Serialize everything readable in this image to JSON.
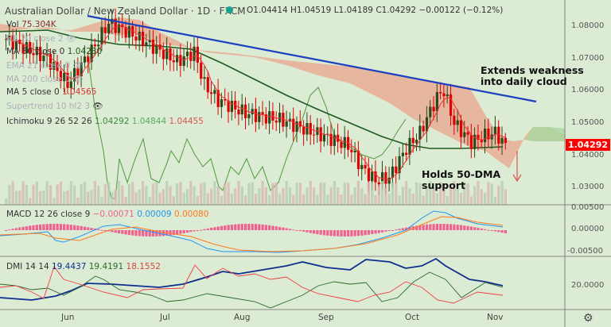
{
  "header": {
    "title": "Australian Dollar / New Zealand Dollar · 1D · FXCM",
    "open": "O1.04414",
    "high": "H1.04519",
    "low": "L1.04189",
    "close": "C1.04292",
    "change": "−0.00122 (−0.12%)"
  },
  "legend": {
    "vol": {
      "label": "Vol",
      "value": "75.304K"
    },
    "bb": {
      "label": "BB 20 close 2"
    },
    "ma50": {
      "label": "MA 50 close 0",
      "value": "1.04230"
    },
    "ema21": {
      "label": "EMA 21 close 0"
    },
    "ma200": {
      "label": "MA 200 close 0"
    },
    "ma5": {
      "label": "MA 5 close 0",
      "value": "1.04565"
    },
    "supertrend": {
      "label": "Supertrend 10 hl2 3"
    },
    "ichimoku": {
      "label": "Ichimoku 9 26 52 26",
      "v1": "1.04292",
      "v2": "1.04844",
      "v3": "1.04455"
    }
  },
  "macd": {
    "label": "MACD 12 26 close 9",
    "hist": "−0.00071",
    "macd": "0.00009",
    "signal": "0.00080"
  },
  "dmi": {
    "label": "DMI 14 14",
    "adx": "19.4437",
    "plus": "19.4191",
    "minus": "18.1552"
  },
  "annotations": {
    "a1_l1": "Extends weakness",
    "a1_l2": "into daily cloud",
    "a2_l1": "Holds 50-DMA",
    "a2_l2": "support"
  },
  "price_tag": "1.04292",
  "colors": {
    "bg": "#dcebd4",
    "up": "#2d4a1e",
    "down": "#e00000",
    "trend": "#1a3fbf",
    "ma50": "#1e5a1e",
    "ma5": "#f03030",
    "macd": "#2196f3",
    "signal": "#ff7a1a",
    "hist": "#f06090"
  },
  "chart_data": {
    "type": "candlestick",
    "title": "Australian Dollar / New Zealand Dollar · 1D · FXCM",
    "x_ticks": [
      "Jun",
      "Jul",
      "Aug",
      "Sep",
      "Oct",
      "Nov"
    ],
    "y_ticks": [
      "1.08000",
      "1.07000",
      "1.06000",
      "1.05000",
      "1.04000",
      "1.03000"
    ],
    "macd_ticks": [
      "0.00500",
      "0.00000",
      "-0.00500"
    ],
    "dmi_ticks": [
      "20.0000"
    ],
    "ylim": [
      1.025,
      1.088
    ],
    "approx_close_path": [
      [
        0,
        1.076
      ],
      [
        12,
        1.07
      ],
      [
        18,
        1.062
      ],
      [
        22,
        1.068
      ],
      [
        26,
        1.074
      ],
      [
        30,
        1.081
      ],
      [
        36,
        1.078
      ],
      [
        44,
        1.073
      ],
      [
        50,
        1.069
      ],
      [
        55,
        1.072
      ],
      [
        58,
        1.062
      ],
      [
        62,
        1.057
      ],
      [
        70,
        1.053
      ],
      [
        80,
        1.051
      ],
      [
        90,
        1.047
      ],
      [
        100,
        1.043
      ],
      [
        104,
        1.036
      ],
      [
        108,
        1.032
      ],
      [
        112,
        1.033
      ],
      [
        117,
        1.042
      ],
      [
        121,
        1.047
      ],
      [
        126,
        1.058
      ],
      [
        128,
        1.06
      ],
      [
        131,
        1.05
      ],
      [
        136,
        1.044
      ],
      [
        140,
        1.046
      ],
      [
        143,
        1.047
      ],
      [
        146,
        1.043
      ]
    ],
    "trendline": [
      [
        20,
        1.083
      ],
      [
        126,
        1.06
      ],
      [
        146,
        1.0565
      ]
    ]
  }
}
